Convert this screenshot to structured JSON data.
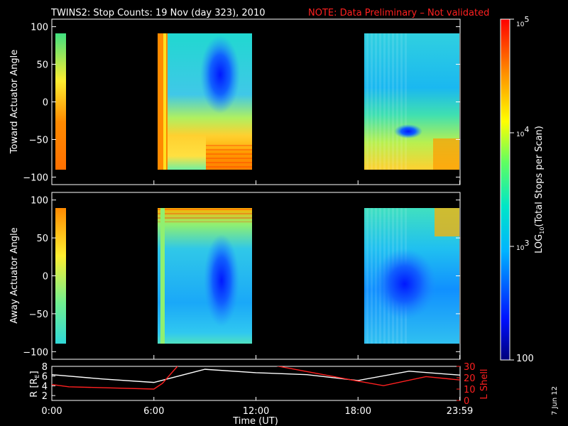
{
  "title": "TWINS2: Stop Counts: 19 Nov (day 323), 2010",
  "note": "NOTE: Data Preliminary – Not validated",
  "date_stamp": "7 Jun 12",
  "colors": {
    "background": "#000000",
    "frame": "#ffffff",
    "accent": "#ff2020"
  },
  "chart_data": [
    {
      "type": "heatmap",
      "ylabel": "Toward Actuator Angle",
      "ylim": [
        -110,
        110
      ],
      "yticks": [
        "100",
        "50",
        "0",
        "−50",
        "−100"
      ],
      "ytick_values": [
        100,
        50,
        0,
        -50,
        -100
      ],
      "data_range_y": [
        -90,
        90
      ],
      "x_unit": "hours UT",
      "coverage_hours": [
        [
          0,
          0.5
        ],
        [
          6.0,
          11.6
        ],
        [
          18.0,
          24.0
        ]
      ]
    },
    {
      "type": "heatmap",
      "ylabel": "Away Actuator Angle",
      "ylim": [
        -110,
        110
      ],
      "yticks": [
        "100",
        "50",
        "0",
        "−50",
        "−100"
      ],
      "ytick_values": [
        100,
        50,
        0,
        -50,
        -100
      ],
      "data_range_y": [
        -90,
        90
      ],
      "x_unit": "hours UT",
      "coverage_hours": [
        [
          0,
          0.5
        ],
        [
          6.0,
          11.6
        ],
        [
          18.0,
          24.0
        ]
      ]
    },
    {
      "type": "line",
      "ylabel_left": "R [R",
      "ylabel_left_sub": "E",
      "ylabel_left_end": "]",
      "ylim_left": [
        1,
        8
      ],
      "yticks_left": [
        "8",
        "6",
        "4",
        "2"
      ],
      "ytick_values_left": [
        8,
        6,
        4,
        2
      ],
      "ylabel_right": "L Shell",
      "ylim_right": [
        0,
        30
      ],
      "yticks_right": [
        "30",
        "20",
        "10",
        "0"
      ],
      "ytick_values_right": [
        30,
        20,
        10,
        0
      ],
      "xlabel": "Time (UT)",
      "xticks": [
        "0:00",
        "6:00",
        "12:00",
        "18:00",
        "23:59"
      ],
      "xtick_values": [
        0,
        6,
        12,
        18,
        23.98
      ],
      "xlim": [
        0,
        24
      ],
      "series": [
        {
          "axis": "left",
          "color": "#ffffff",
          "x": [
            0,
            3,
            6,
            9,
            12,
            15,
            18,
            21,
            24
          ],
          "y": [
            6.3,
            5.4,
            4.7,
            7.4,
            6.7,
            6.3,
            5.1,
            7.0,
            6.2
          ]
        },
        {
          "axis": "right",
          "color": "#ff2020",
          "x": [
            0,
            1,
            6,
            6.5,
            7.5,
            13.0,
            18.0,
            19.5,
            22.0,
            24
          ],
          "y": [
            14,
            12,
            10,
            15,
            32,
            31,
            17,
            13,
            21,
            18
          ]
        }
      ]
    },
    {
      "type": "colorbar",
      "scale": "log",
      "label_pre": "LOG",
      "label_sub": "10",
      "label_post": "(Total Stops per Scan)",
      "range": [
        100,
        100000
      ],
      "ticks": [
        {
          "base": "10",
          "exp": "5",
          "value": 100000
        },
        {
          "base": "10",
          "exp": "4",
          "value": 10000
        },
        {
          "base": "10",
          "exp": "3",
          "value": 1000
        },
        {
          "base": "100",
          "exp": "",
          "value": 100
        }
      ]
    }
  ]
}
